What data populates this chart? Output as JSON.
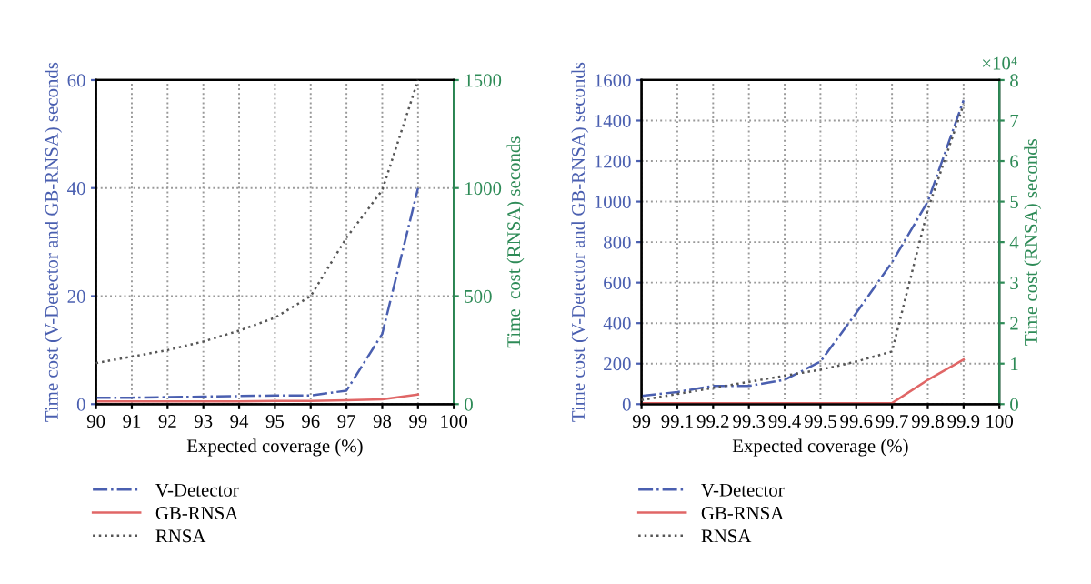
{
  "chart_data": [
    {
      "type": "line",
      "xlabel": "Expected coverage (%)",
      "ylabel": "Time cost (V-Detector and GB-RNSA) seconds",
      "y2label": "Time  cost (RNSA) seconds",
      "x": [
        90,
        91,
        92,
        93,
        94,
        95,
        96,
        97,
        98,
        99
      ],
      "series": [
        {
          "name": "V-Detector",
          "color": "#4a5fb0",
          "line_style": "dashdot",
          "values": [
            1.2,
            1.2,
            1.3,
            1.4,
            1.5,
            1.6,
            1.6,
            2.5,
            13,
            40
          ]
        },
        {
          "name": "GB-RNSA",
          "color": "#e06666",
          "line_style": "solid",
          "values": [
            0.5,
            0.5,
            0.5,
            0.5,
            0.5,
            0.6,
            0.6,
            0.7,
            0.9,
            1.8
          ]
        },
        {
          "name": "RNSA",
          "color": "#555555",
          "line_style": "dotted",
          "axis": "y2",
          "values": [
            190,
            220,
            250,
            290,
            340,
            400,
            500,
            770,
            990,
            1500
          ]
        }
      ],
      "xlim": [
        90,
        100
      ],
      "xticks": [
        90,
        91,
        92,
        93,
        94,
        95,
        96,
        97,
        98,
        99,
        100
      ],
      "ylim": [
        0,
        60
      ],
      "yticks": [
        0,
        20,
        40,
        60
      ],
      "y2lim": [
        0,
        1500
      ],
      "y2ticks": [
        0,
        500,
        1000,
        1500
      ],
      "grid": true,
      "legend": "bottom",
      "marker": "none"
    },
    {
      "type": "line",
      "xlabel": "Expected coverage (%)",
      "ylabel": "Time cost (V-Detector and GB-RNSA) seconds",
      "y2label": "Time cost (RNSA) seconds",
      "annotations": [
        "×10⁴"
      ],
      "x": [
        99,
        99.1,
        99.2,
        99.3,
        99.4,
        99.5,
        99.6,
        99.7,
        99.8,
        99.9
      ],
      "series": [
        {
          "name": "V-Detector",
          "color": "#4a5fb0",
          "line_style": "dashdot",
          "values": [
            40,
            60,
            90,
            90,
            120,
            210,
            450,
            700,
            1000,
            1500
          ]
        },
        {
          "name": "GB-RNSA",
          "color": "#e06666",
          "line_style": "solid",
          "values": [
            5,
            5,
            5,
            5,
            5,
            5,
            5,
            5,
            120,
            220
          ]
        },
        {
          "name": "RNSA",
          "color": "#555555",
          "line_style": "dotted",
          "axis": "y2",
          "values": [
            0.1,
            0.25,
            0.4,
            0.55,
            0.7,
            0.85,
            1.05,
            1.3,
            4.8,
            7.4
          ]
        }
      ],
      "xlim": [
        99,
        100
      ],
      "xticks": [
        99,
        99.1,
        99.2,
        99.3,
        99.4,
        99.5,
        99.6,
        99.7,
        99.8,
        99.9,
        100
      ],
      "ylim": [
        0,
        1600
      ],
      "yticks": [
        0,
        200,
        400,
        600,
        800,
        1000,
        1200,
        1400,
        1600
      ],
      "y2lim": [
        0,
        8
      ],
      "y2ticks": [
        0,
        1,
        2,
        3,
        4,
        5,
        6,
        7,
        8
      ],
      "grid": true,
      "legend": "bottom",
      "marker": "none"
    }
  ]
}
